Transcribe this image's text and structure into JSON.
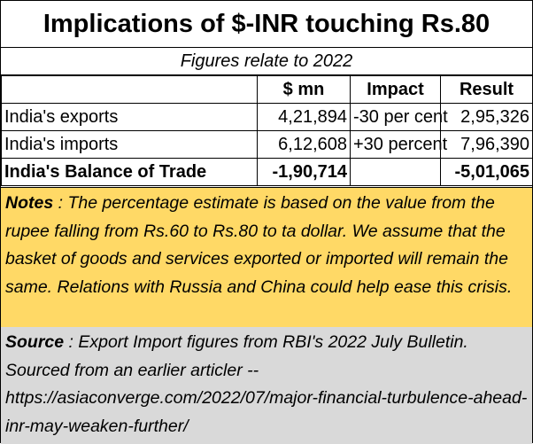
{
  "title": "Implications of  $-INR touching Rs.80",
  "subtitle": "Figures relate to 2022",
  "table": {
    "headers": [
      "",
      "$ mn",
      "Impact",
      "Result"
    ],
    "rows": [
      {
        "label": "India's  exports",
        "value": "4,21,894",
        "impact": "-30 per cent",
        "result": "2,95,326"
      },
      {
        "label": "India's imports",
        "value": "6,12,608",
        "impact": "+30 percent",
        "result": "7,96,390"
      },
      {
        "label": "India's Balance of Trade",
        "value": "-1,90,714",
        "impact": "",
        "result": "-5,01,065"
      }
    ]
  },
  "notes": {
    "label": "Notes",
    "text": " :  The percentage estimate is based on the value from the rupee falling from Rs.60 to Rs.80 to ta dollar.  We assume that the basket of goods and services exported or imported will remain the same.  Relations with Russia and China could help ease this crisis."
  },
  "source": {
    "label": "Source",
    "text": " : Export Import figures from RBI's 2022 July Bulletin. Sourced from an earlier articler -- https://asiaconverge.com/2022/07/major-financial-turbulence-ahead-inr-may-weaken-further/"
  },
  "colors": {
    "notes_bg": "#ffd966",
    "source_bg": "#d9d9d9"
  }
}
